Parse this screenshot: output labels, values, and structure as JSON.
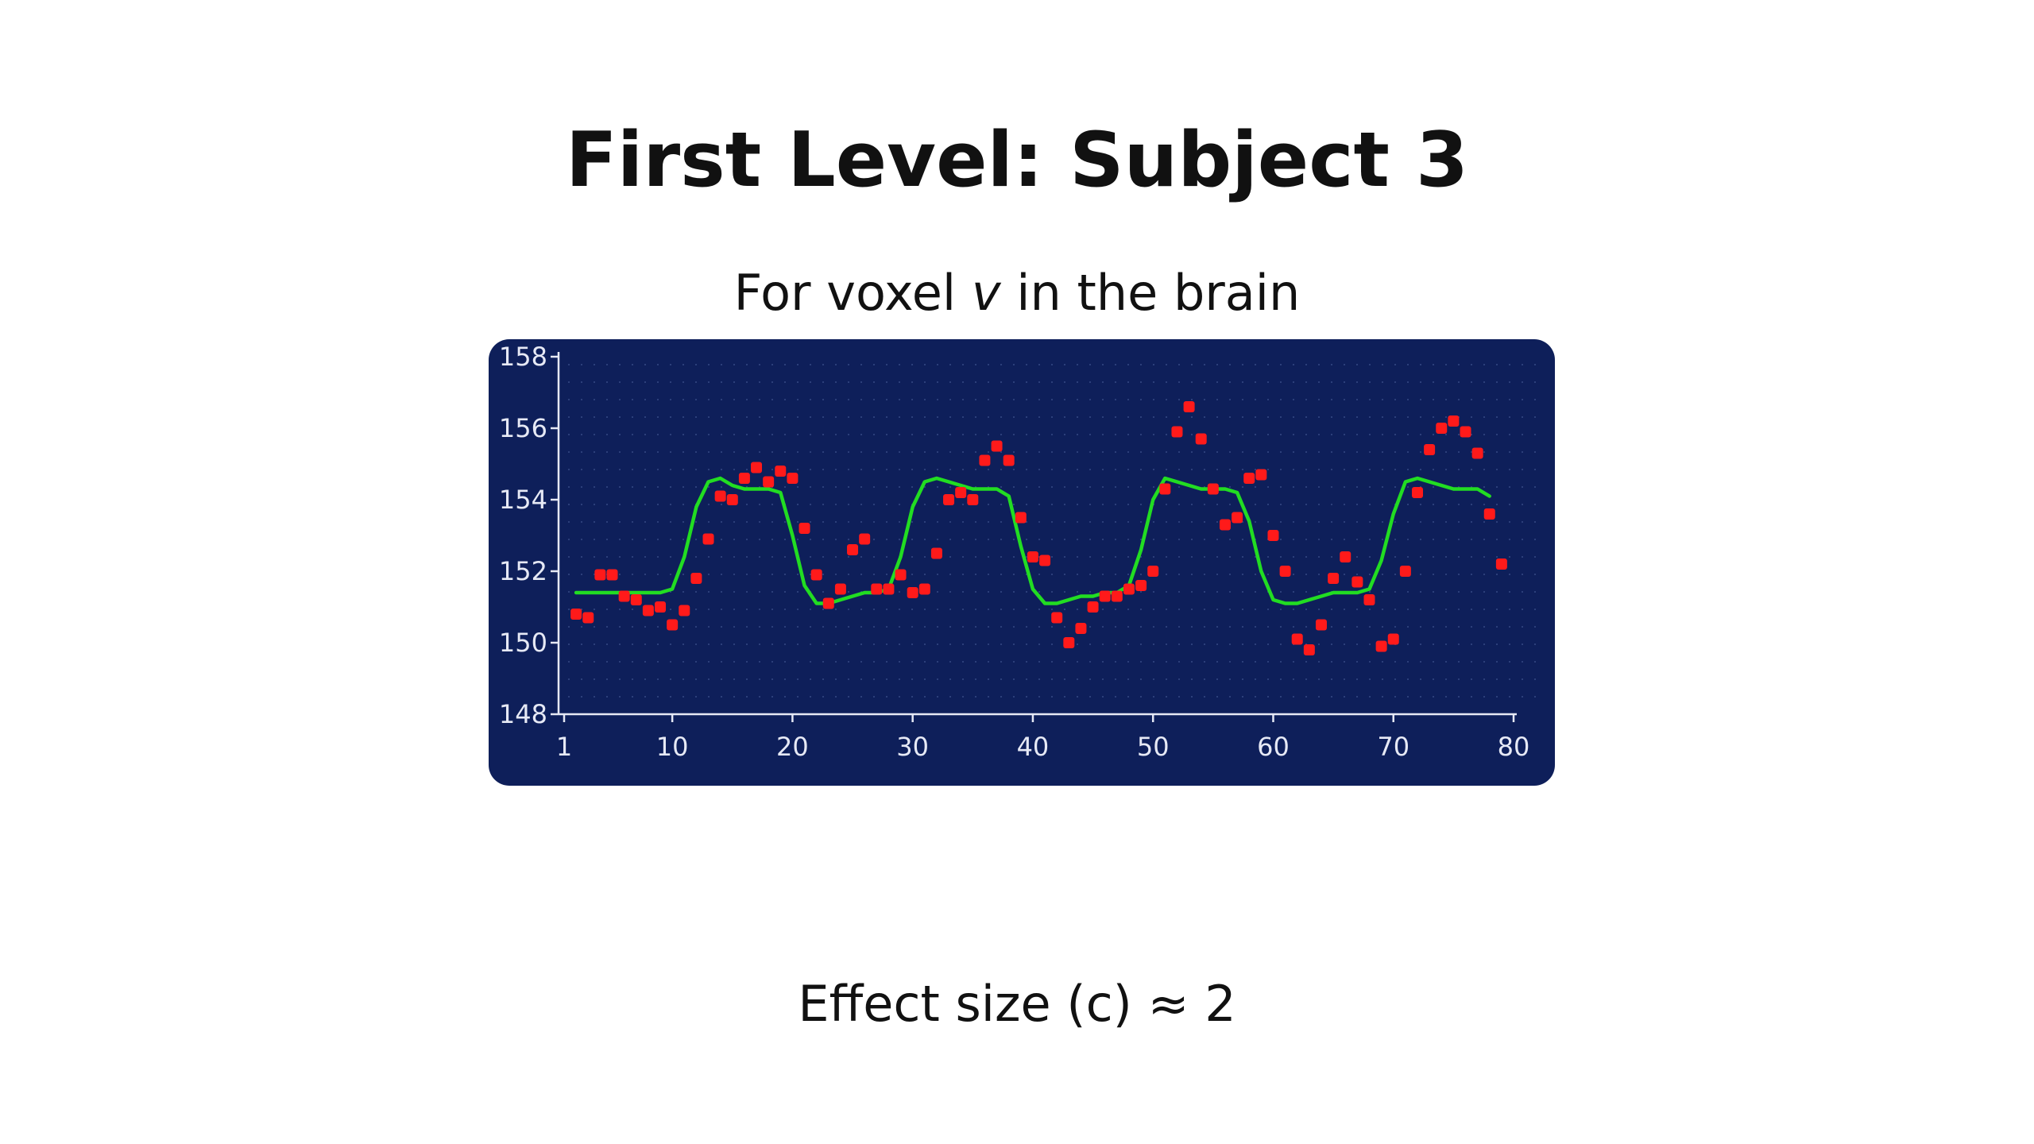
{
  "slide": {
    "title": "First Level: Subject 3",
    "subtitle_pre": "For voxel ",
    "subtitle_var": "v",
    "subtitle_post": " in the brain",
    "footer": "Effect size (c) ≈ 2"
  },
  "colors": {
    "chart_background": "#0e1f5a",
    "axis": "#e6e9f5",
    "points": "#ff1a1a",
    "fit_line": "#22dd22"
  },
  "chart_data": {
    "type": "scatter",
    "title": "",
    "xlabel": "",
    "ylabel": "",
    "xlim": [
      1,
      80
    ],
    "ylim": [
      148,
      158
    ],
    "x_ticks": [
      1,
      10,
      20,
      30,
      40,
      50,
      60,
      70,
      80
    ],
    "y_ticks": [
      148,
      150,
      152,
      154,
      156,
      158
    ],
    "grid": "dotted",
    "series": [
      {
        "type": "scatter",
        "color": "#ff1a1a",
        "points": [
          [
            2,
            150.8
          ],
          [
            3,
            150.7
          ],
          [
            4,
            151.9
          ],
          [
            5,
            151.9
          ],
          [
            6,
            151.3
          ],
          [
            7,
            151.2
          ],
          [
            8,
            150.9
          ],
          [
            9,
            151.0
          ],
          [
            10,
            150.5
          ],
          [
            11,
            150.9
          ],
          [
            12,
            151.8
          ],
          [
            13,
            152.9
          ],
          [
            14,
            154.1
          ],
          [
            15,
            154.0
          ],
          [
            16,
            154.6
          ],
          [
            17,
            154.9
          ],
          [
            18,
            154.5
          ],
          [
            19,
            154.8
          ],
          [
            20,
            154.6
          ],
          [
            21,
            153.2
          ],
          [
            22,
            151.9
          ],
          [
            23,
            151.1
          ],
          [
            24,
            151.5
          ],
          [
            25,
            152.6
          ],
          [
            26,
            152.9
          ],
          [
            27,
            151.5
          ],
          [
            28,
            151.5
          ],
          [
            29,
            151.9
          ],
          [
            30,
            151.4
          ],
          [
            31,
            151.5
          ],
          [
            32,
            152.5
          ],
          [
            33,
            154.0
          ],
          [
            34,
            154.2
          ],
          [
            35,
            154.0
          ],
          [
            36,
            155.1
          ],
          [
            37,
            155.5
          ],
          [
            38,
            155.1
          ],
          [
            39,
            153.5
          ],
          [
            40,
            152.4
          ],
          [
            41,
            152.3
          ],
          [
            42,
            150.7
          ],
          [
            43,
            150.0
          ],
          [
            44,
            150.4
          ],
          [
            45,
            151.0
          ],
          [
            46,
            151.3
          ],
          [
            47,
            151.3
          ],
          [
            48,
            151.5
          ],
          [
            49,
            151.6
          ],
          [
            50,
            152.0
          ],
          [
            51,
            154.3
          ],
          [
            52,
            155.9
          ],
          [
            53,
            156.6
          ],
          [
            54,
            155.7
          ],
          [
            55,
            154.3
          ],
          [
            56,
            153.3
          ],
          [
            57,
            153.5
          ],
          [
            58,
            154.6
          ],
          [
            59,
            154.7
          ],
          [
            60,
            153.0
          ],
          [
            61,
            152.0
          ],
          [
            62,
            150.1
          ],
          [
            63,
            149.8
          ],
          [
            64,
            150.5
          ],
          [
            65,
            151.8
          ],
          [
            66,
            152.4
          ],
          [
            67,
            151.7
          ],
          [
            68,
            151.2
          ],
          [
            69,
            149.9
          ],
          [
            70,
            150.1
          ],
          [
            71,
            152.0
          ],
          [
            72,
            154.2
          ],
          [
            73,
            155.4
          ],
          [
            74,
            156.0
          ],
          [
            75,
            156.2
          ],
          [
            76,
            155.9
          ],
          [
            77,
            155.3
          ],
          [
            78,
            153.6
          ],
          [
            79,
            152.2
          ]
        ]
      },
      {
        "type": "line",
        "color": "#22dd22",
        "points": [
          [
            2,
            151.4
          ],
          [
            9,
            151.4
          ],
          [
            10,
            151.5
          ],
          [
            11,
            152.4
          ],
          [
            12,
            153.8
          ],
          [
            13,
            154.5
          ],
          [
            14,
            154.6
          ],
          [
            15,
            154.4
          ],
          [
            16,
            154.3
          ],
          [
            17,
            154.3
          ],
          [
            18,
            154.3
          ],
          [
            19,
            154.2
          ],
          [
            20,
            153.0
          ],
          [
            21,
            151.6
          ],
          [
            22,
            151.1
          ],
          [
            23,
            151.1
          ],
          [
            24,
            151.2
          ],
          [
            25,
            151.3
          ],
          [
            26,
            151.4
          ],
          [
            27,
            151.4
          ],
          [
            28,
            151.5
          ],
          [
            29,
            152.4
          ],
          [
            30,
            153.8
          ],
          [
            31,
            154.5
          ],
          [
            32,
            154.6
          ],
          [
            33,
            154.5
          ],
          [
            34,
            154.4
          ],
          [
            35,
            154.3
          ],
          [
            36,
            154.3
          ],
          [
            37,
            154.3
          ],
          [
            38,
            154.1
          ],
          [
            39,
            152.7
          ],
          [
            40,
            151.5
          ],
          [
            41,
            151.1
          ],
          [
            42,
            151.1
          ],
          [
            43,
            151.2
          ],
          [
            44,
            151.3
          ],
          [
            45,
            151.3
          ],
          [
            46,
            151.4
          ],
          [
            47,
            151.4
          ],
          [
            48,
            151.6
          ],
          [
            49,
            152.6
          ],
          [
            50,
            154.0
          ],
          [
            51,
            154.6
          ],
          [
            52,
            154.5
          ],
          [
            53,
            154.4
          ],
          [
            54,
            154.3
          ],
          [
            55,
            154.3
          ],
          [
            56,
            154.3
          ],
          [
            57,
            154.2
          ],
          [
            58,
            153.4
          ],
          [
            59,
            152.0
          ],
          [
            60,
            151.2
          ],
          [
            61,
            151.1
          ],
          [
            62,
            151.1
          ],
          [
            63,
            151.2
          ],
          [
            64,
            151.3
          ],
          [
            65,
            151.4
          ],
          [
            66,
            151.4
          ],
          [
            67,
            151.4
          ],
          [
            68,
            151.5
          ],
          [
            69,
            152.3
          ],
          [
            70,
            153.6
          ],
          [
            71,
            154.5
          ],
          [
            72,
            154.6
          ],
          [
            73,
            154.5
          ],
          [
            74,
            154.4
          ],
          [
            75,
            154.3
          ],
          [
            76,
            154.3
          ],
          [
            77,
            154.3
          ],
          [
            78,
            154.1
          ]
        ]
      }
    ]
  }
}
